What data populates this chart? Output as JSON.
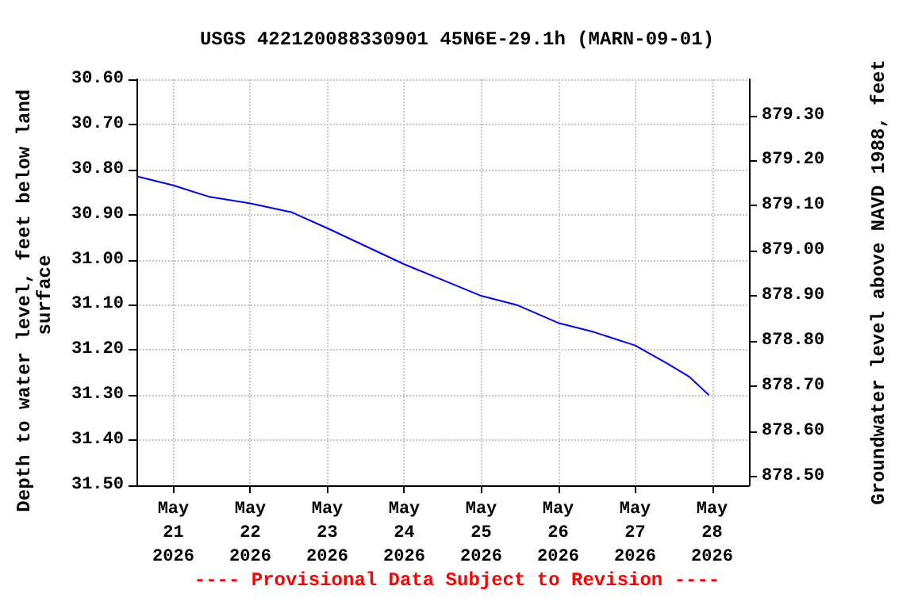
{
  "chart_data": {
    "type": "line",
    "title": "USGS 422120088330901 45N6E-29.1h (MARN-09-01)",
    "ylabel": "Depth to water level, feet below land surface",
    "y2label": "Groundwater level above NAVD 1988, feet",
    "annotations": [
      "---- Provisional Data Subject to Revision ----"
    ],
    "x": [
      "2026-05-20T12:30",
      "2026-05-21T00:00",
      "2026-05-21T11:00",
      "2026-05-22T00:00",
      "2026-05-22T13:00",
      "2026-05-23T00:00",
      "2026-05-23T12:00",
      "2026-05-24T00:00",
      "2026-05-24T12:00",
      "2026-05-25T00:00",
      "2026-05-25T11:00",
      "2026-05-26T00:00",
      "2026-05-26T11:00",
      "2026-05-27T00:00",
      "2026-05-27T10:00",
      "2026-05-27T17:00",
      "2026-05-27T23:00"
    ],
    "series": [
      {
        "color": "#0000ff",
        "values": [
          30.815,
          30.835,
          30.86,
          30.875,
          30.895,
          30.93,
          30.97,
          31.01,
          31.045,
          31.08,
          31.1,
          31.14,
          31.16,
          31.19,
          31.23,
          31.26,
          31.3
        ]
      }
    ],
    "xlim": [
      "2026-05-20T12:30",
      "2026-05-28T11:30"
    ],
    "xticks": [
      {
        "value": "2026-05-21",
        "label": "May\n21\n2026"
      },
      {
        "value": "2026-05-22",
        "label": "May\n22\n2026"
      },
      {
        "value": "2026-05-23",
        "label": "May\n23\n2026"
      },
      {
        "value": "2026-05-24",
        "label": "May\n24\n2026"
      },
      {
        "value": "2026-05-25",
        "label": "May\n25\n2026"
      },
      {
        "value": "2026-05-26",
        "label": "May\n26\n2026"
      },
      {
        "value": "2026-05-27",
        "label": "May\n27\n2026"
      },
      {
        "value": "2026-05-28",
        "label": "May\n28\n2026"
      }
    ],
    "ylim": [
      31.5,
      30.6
    ],
    "yticks": [
      {
        "value": 30.6,
        "label": "30.60"
      },
      {
        "value": 30.7,
        "label": "30.70"
      },
      {
        "value": 30.8,
        "label": "30.80"
      },
      {
        "value": 30.9,
        "label": "30.90"
      },
      {
        "value": 31.0,
        "label": "31.00"
      },
      {
        "value": 31.1,
        "label": "31.10"
      },
      {
        "value": 31.2,
        "label": "31.20"
      },
      {
        "value": 31.3,
        "label": "31.30"
      },
      {
        "value": 31.4,
        "label": "31.40"
      },
      {
        "value": 31.5,
        "label": "31.50"
      }
    ],
    "y2lim": [
      878.48,
      879.38
    ],
    "y2ticks": [
      {
        "value": 878.5,
        "label": "878.50"
      },
      {
        "value": 878.6,
        "label": "878.60"
      },
      {
        "value": 878.7,
        "label": "878.70"
      },
      {
        "value": 878.8,
        "label": "878.80"
      },
      {
        "value": 878.9,
        "label": "878.90"
      },
      {
        "value": 879.0,
        "label": "879.00"
      },
      {
        "value": 879.1,
        "label": "879.10"
      },
      {
        "value": 879.2,
        "label": "879.20"
      },
      {
        "value": 879.3,
        "label": "879.30"
      }
    ],
    "grid": true
  }
}
